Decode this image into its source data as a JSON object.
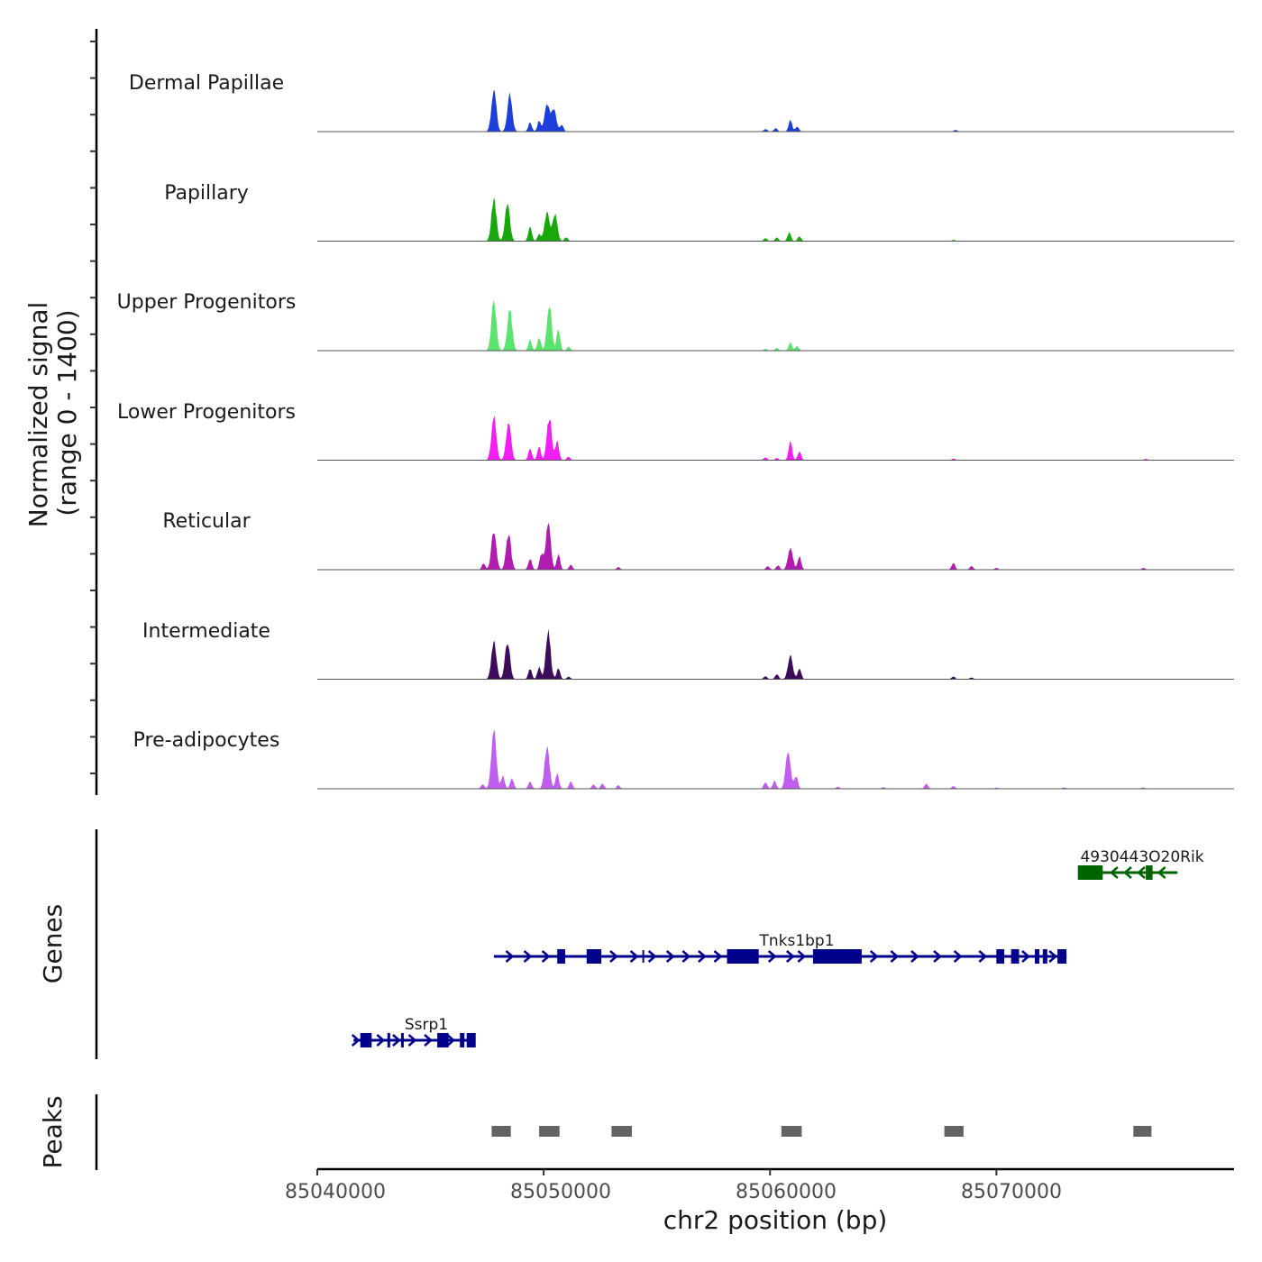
{
  "chart_data": {
    "type": "area",
    "title": "",
    "ylabel_line1": "Normalized signal",
    "ylabel_line2": "(range 0 - 1400)",
    "ylim": [
      0,
      1400
    ],
    "xlabel": "chr2 position (bp)",
    "xlim": [
      85040000,
      85080500
    ],
    "xticks": [
      85040000,
      85050000,
      85060000,
      85070000
    ],
    "xtick_labels": [
      "85040000",
      "85050000",
      "85060000",
      "85070000"
    ],
    "tracks": [
      {
        "name": "Dermal Papillae",
        "color": "#1c3fdc",
        "peaks": [
          [
            85047800,
            1000
          ],
          [
            85048500,
            850
          ],
          [
            85049400,
            210
          ],
          [
            85049800,
            250
          ],
          [
            85050150,
            650
          ],
          [
            85050450,
            520
          ],
          [
            85050800,
            150
          ],
          [
            85059800,
            60
          ],
          [
            85060250,
            80
          ],
          [
            85060900,
            260
          ],
          [
            85061200,
            120
          ],
          [
            85068200,
            40
          ]
        ]
      },
      {
        "name": "Papillary",
        "color": "#18a80c",
        "peaks": [
          [
            85047800,
            980
          ],
          [
            85048400,
            880
          ],
          [
            85049400,
            310
          ],
          [
            85049800,
            160
          ],
          [
            85050150,
            680
          ],
          [
            85050500,
            620
          ],
          [
            85051000,
            90
          ],
          [
            85059800,
            70
          ],
          [
            85060300,
            80
          ],
          [
            85060850,
            190
          ],
          [
            85061300,
            110
          ],
          [
            85068100,
            30
          ]
        ]
      },
      {
        "name": "Upper Progenitors",
        "color": "#5ce36e",
        "peaks": [
          [
            85047800,
            1150
          ],
          [
            85048500,
            950
          ],
          [
            85049400,
            250
          ],
          [
            85049800,
            310
          ],
          [
            85050250,
            1000
          ],
          [
            85050650,
            480
          ],
          [
            85051100,
            90
          ],
          [
            85059800,
            40
          ],
          [
            85060300,
            60
          ],
          [
            85060900,
            180
          ],
          [
            85061200,
            100
          ]
        ]
      },
      {
        "name": "Lower Progenitors",
        "color": "#f21ef2",
        "peaks": [
          [
            85047800,
            1000
          ],
          [
            85048450,
            870
          ],
          [
            85049400,
            250
          ],
          [
            85049800,
            300
          ],
          [
            85050250,
            1000
          ],
          [
            85050600,
            450
          ],
          [
            85051100,
            80
          ],
          [
            85059800,
            60
          ],
          [
            85060300,
            50
          ],
          [
            85060900,
            420
          ],
          [
            85061300,
            200
          ],
          [
            85068100,
            35
          ],
          [
            85076600,
            30
          ]
        ]
      },
      {
        "name": "Reticular",
        "color": "#b01cb0",
        "peaks": [
          [
            85047350,
            150
          ],
          [
            85047800,
            920
          ],
          [
            85048450,
            830
          ],
          [
            85049400,
            250
          ],
          [
            85049900,
            350
          ],
          [
            85050200,
            1100
          ],
          [
            85050650,
            350
          ],
          [
            85051200,
            110
          ],
          [
            85053300,
            60
          ],
          [
            85059900,
            80
          ],
          [
            85060350,
            100
          ],
          [
            85060900,
            520
          ],
          [
            85061300,
            300
          ],
          [
            85068100,
            150
          ],
          [
            85068900,
            80
          ],
          [
            85070000,
            40
          ],
          [
            85076500,
            40
          ]
        ]
      },
      {
        "name": "Intermediate",
        "color": "#3c0c5a",
        "peaks": [
          [
            85047800,
            900
          ],
          [
            85048400,
            880
          ],
          [
            85049400,
            240
          ],
          [
            85049800,
            280
          ],
          [
            85050200,
            1080
          ],
          [
            85050650,
            250
          ],
          [
            85051100,
            60
          ],
          [
            85059800,
            70
          ],
          [
            85060300,
            110
          ],
          [
            85060900,
            520
          ],
          [
            85061300,
            250
          ],
          [
            85068100,
            65
          ],
          [
            85068900,
            40
          ]
        ]
      },
      {
        "name": "Pre-adipocytes",
        "color": "#c05ef0",
        "peaks": [
          [
            85047300,
            100
          ],
          [
            85047800,
            1400
          ],
          [
            85048200,
            300
          ],
          [
            85048600,
            240
          ],
          [
            85049400,
            160
          ],
          [
            85050150,
            1000
          ],
          [
            85050600,
            350
          ],
          [
            85051200,
            160
          ],
          [
            85052200,
            100
          ],
          [
            85052600,
            120
          ],
          [
            85053300,
            80
          ],
          [
            85059800,
            150
          ],
          [
            85060200,
            180
          ],
          [
            85060800,
            900
          ],
          [
            85061150,
            300
          ],
          [
            85063000,
            45
          ],
          [
            85065000,
            35
          ],
          [
            85066900,
            120
          ],
          [
            85068100,
            60
          ],
          [
            85070000,
            30
          ],
          [
            85073000,
            30
          ],
          [
            85076500,
            30
          ]
        ]
      }
    ],
    "genes": [
      {
        "name": "4930443O20Rik",
        "strand": "-",
        "color": "#006400",
        "start": 85073600,
        "end": 85078000,
        "exons": [
          [
            85073600,
            85074700
          ],
          [
            85076600,
            85076900
          ]
        ],
        "arrows": [
          85075200,
          85075800,
          85076400,
          85077300
        ]
      },
      {
        "name": "Tnks1bp1",
        "strand": "+",
        "color": "#00008b",
        "start": 85047800,
        "end": 85073100,
        "exons": [
          [
            85050600,
            85050950
          ],
          [
            85051900,
            85052550
          ],
          [
            85058100,
            85059500
          ],
          [
            85061900,
            85064050
          ],
          [
            85070000,
            85070350
          ],
          [
            85070650,
            85071000
          ],
          [
            85071700,
            85071900
          ],
          [
            85072050,
            85072250
          ],
          [
            85072700,
            85073100
          ]
        ],
        "arrows": [
          85048500,
          85049300,
          85050100,
          85053100,
          85054000,
          85054800,
          85055600,
          85056300,
          85057000,
          85057700,
          85060100,
          85060900,
          85061400,
          85064600,
          85065500,
          85066400,
          85067400,
          85068300,
          85069400,
          85071300,
          85072500
        ],
        "ticks": [
          85054400
        ]
      },
      {
        "name": "Ssrp1",
        "strand": "+",
        "color": "#00008b",
        "start": 85041600,
        "end": 85046900,
        "exons": [
          [
            85041900,
            85042400
          ],
          [
            85043100,
            85043200
          ],
          [
            85043700,
            85043800
          ],
          [
            85045300,
            85045800
          ],
          [
            85046300,
            85046500
          ],
          [
            85046600,
            85047000
          ]
        ],
        "arrows": [
          85041700,
          85042800,
          85043500,
          85044200,
          85044900,
          85045900
        ]
      }
    ],
    "peaks_regions": [
      [
        85047700,
        85048550
      ],
      [
        85049800,
        85050700
      ],
      [
        85053000,
        85053900
      ],
      [
        85060500,
        85061400
      ],
      [
        85067700,
        85068550
      ],
      [
        85076050,
        85076850
      ]
    ],
    "section_labels": {
      "genes": "Genes",
      "peaks": "Peaks"
    }
  }
}
